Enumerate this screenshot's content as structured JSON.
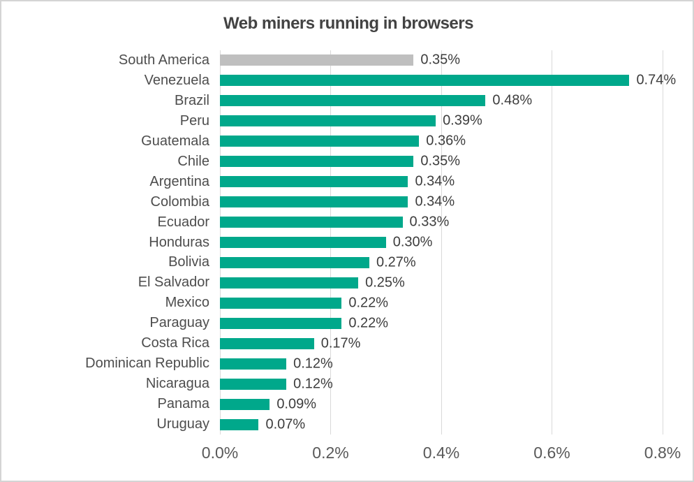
{
  "chart_data": {
    "type": "bar",
    "orientation": "horizontal",
    "title": "Web miners running in browsers",
    "categories": [
      "South America",
      "Venezuela",
      "Brazil",
      "Peru",
      "Guatemala",
      "Chile",
      "Argentina",
      "Colombia",
      "Ecuador",
      "Honduras",
      "Bolivia",
      "El Salvador",
      "Mexico",
      "Paraguay",
      "Costa Rica",
      "Dominican Republic",
      "Nicaragua",
      "Panama",
      "Uruguay"
    ],
    "values": [
      0.35,
      0.74,
      0.48,
      0.39,
      0.36,
      0.35,
      0.34,
      0.34,
      0.33,
      0.3,
      0.27,
      0.25,
      0.22,
      0.22,
      0.17,
      0.12,
      0.12,
      0.09,
      0.07
    ],
    "value_labels": [
      "0.35%",
      "0.74%",
      "0.48%",
      "0.39%",
      "0.36%",
      "0.35%",
      "0.34%",
      "0.34%",
      "0.33%",
      "0.30%",
      "0.27%",
      "0.25%",
      "0.22%",
      "0.22%",
      "0.17%",
      "0.12%",
      "0.12%",
      "0.09%",
      "0.07%"
    ],
    "x_ticks": [
      "0.0%",
      "0.2%",
      "0.4%",
      "0.6%",
      "0.8%"
    ],
    "xlim": [
      0,
      0.8
    ],
    "grid": "vertical",
    "colors": {
      "default_bar": "#00a88b",
      "highlight_bar": "#bfbfbf",
      "highlight_index": 0,
      "gridline": "#d9d9d9",
      "title_text": "#434343",
      "category_text": "#4d4d4d",
      "value_text": "#3d3d3d",
      "tick_text": "#595959"
    }
  }
}
